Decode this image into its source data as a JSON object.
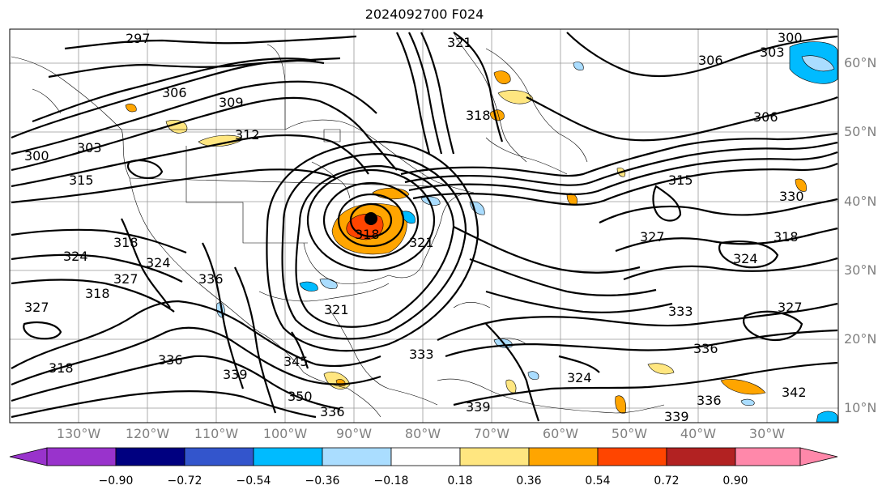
{
  "title": "2024092700 F024",
  "lat_labels": [
    "60°N",
    "50°N",
    "40°N",
    "30°N",
    "20°N",
    "10°N"
  ],
  "lon_labels": [
    "130°W",
    "120°W",
    "110°W",
    "100°W",
    "90°W",
    "80°W",
    "70°W",
    "60°W",
    "50°W",
    "40°W",
    "30°W"
  ],
  "contour_labels": [
    "297",
    "300",
    "303",
    "306",
    "309",
    "312",
    "315",
    "318",
    "321",
    "324",
    "327",
    "330",
    "333",
    "336",
    "339",
    "342",
    "345",
    "350"
  ],
  "colorbar": {
    "ticks": [
      "−0.90",
      "−0.72",
      "−0.54",
      "−0.36",
      "−0.18",
      "0.18",
      "0.36",
      "0.54",
      "0.72",
      "0.90"
    ],
    "colors": [
      "#9933cc",
      "#000080",
      "#3355cc",
      "#00bbff",
      "#aaddff",
      "#ffffff",
      "#ffe680",
      "#ffa500",
      "#ff4500",
      "#b22222",
      "#ff88aa"
    ]
  }
}
